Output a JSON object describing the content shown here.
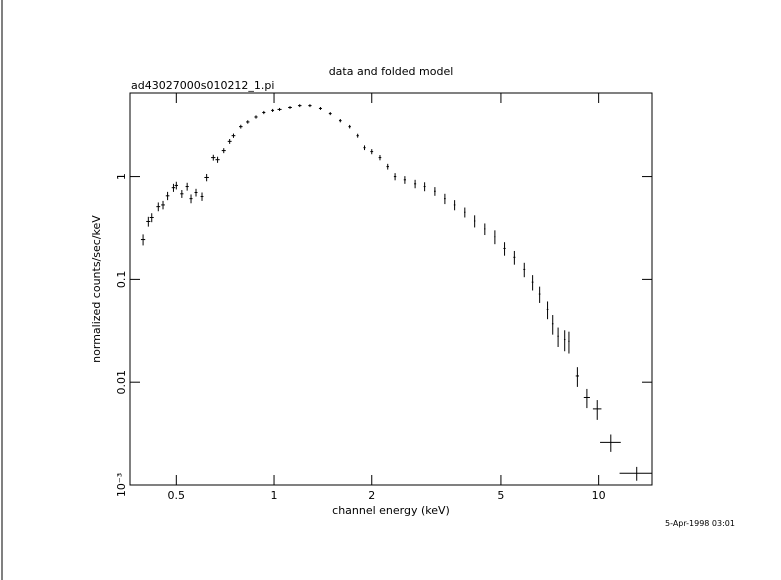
{
  "chart_data": {
    "type": "scatter",
    "title": "data and folded model",
    "subtitle": "ad43027000s010212_1.pi",
    "xlabel": "channel energy (keV)",
    "ylabel": "normalized counts/sec/keV",
    "timestamp": "5-Apr-1998 03:01",
    "xscale": "log",
    "yscale": "log",
    "xlim": [
      0.36,
      14.6
    ],
    "ylim": [
      0.001,
      6.5
    ],
    "xticks": [
      0.5,
      1,
      2,
      5,
      10
    ],
    "yticks": [
      {
        "value": 0.001,
        "label": "10⁻³"
      },
      0.01,
      0.1,
      1
    ],
    "series": [
      {
        "color": "#000000",
        "x": [
          0.395,
          0.41,
          0.42,
          0.44,
          0.455,
          0.47,
          0.49,
          0.5,
          0.52,
          0.54,
          0.555,
          0.575,
          0.6,
          0.62,
          0.65,
          0.67,
          0.7,
          0.73,
          0.75,
          0.79,
          0.83,
          0.88,
          0.93,
          0.99,
          1.04,
          1.12,
          1.2,
          1.29,
          1.39,
          1.49,
          1.6,
          1.71,
          1.81,
          1.9,
          2.0,
          2.12,
          2.24,
          2.36,
          2.53,
          2.72,
          2.91,
          3.13,
          3.36,
          3.6,
          3.87,
          4.15,
          4.46,
          4.79,
          5.13,
          5.5,
          5.9,
          6.26,
          6.58,
          6.96,
          7.22,
          7.5,
          7.86,
          8.1,
          8.6,
          9.2,
          9.9,
          10.9,
          13.1
        ],
        "values": [
          0.244,
          0.366,
          0.4,
          0.51,
          0.53,
          0.65,
          0.78,
          0.82,
          0.68,
          0.8,
          0.61,
          0.7,
          0.64,
          0.98,
          1.53,
          1.46,
          1.79,
          2.2,
          2.5,
          3.06,
          3.4,
          3.8,
          4.2,
          4.4,
          4.5,
          4.7,
          4.9,
          4.9,
          4.6,
          4.1,
          3.5,
          3.06,
          2.5,
          1.91,
          1.75,
          1.53,
          1.25,
          1.0,
          0.93,
          0.85,
          0.8,
          0.72,
          0.61,
          0.53,
          0.45,
          0.37,
          0.31,
          0.26,
          0.2,
          0.164,
          0.125,
          0.094,
          0.072,
          0.051,
          0.037,
          0.028,
          0.026,
          0.025,
          0.0115,
          0.0071,
          0.0055,
          0.0026,
          0.0013
        ],
        "xerr": [
          0.006,
          0.006,
          0.006,
          0.006,
          0.006,
          0.006,
          0.006,
          0.006,
          0.006,
          0.006,
          0.006,
          0.006,
          0.006,
          0.01,
          0.01,
          0.01,
          0.01,
          0.01,
          0.01,
          0.01,
          0.01,
          0.01,
          0.01,
          0.01,
          0.015,
          0.015,
          0.015,
          0.015,
          0.015,
          0.015,
          0.015,
          0.015,
          0.015,
          0.015,
          0.02,
          0.02,
          0.02,
          0.02,
          0.02,
          0.02,
          0.02,
          0.02,
          0.02,
          0.02,
          0.02,
          0.02,
          0.02,
          0.02,
          0.04,
          0.04,
          0.04,
          0.04,
          0.04,
          0.04,
          0.04,
          0.04,
          0.04,
          0.04,
          0.1,
          0.2,
          0.3,
          0.8,
          1.5
        ],
        "yerr": [
          0.03,
          0.04,
          0.04,
          0.05,
          0.05,
          0.06,
          0.07,
          0.07,
          0.06,
          0.07,
          0.06,
          0.06,
          0.06,
          0.08,
          0.1,
          0.1,
          0.1,
          0.12,
          0.12,
          0.13,
          0.13,
          0.14,
          0.15,
          0.15,
          0.15,
          0.15,
          0.16,
          0.16,
          0.15,
          0.14,
          0.13,
          0.12,
          0.11,
          0.1,
          0.1,
          0.09,
          0.08,
          0.08,
          0.08,
          0.08,
          0.08,
          0.07,
          0.07,
          0.06,
          0.05,
          0.05,
          0.04,
          0.04,
          0.03,
          0.025,
          0.02,
          0.016,
          0.013,
          0.01,
          0.008,
          0.006,
          0.006,
          0.006,
          0.0025,
          0.0015,
          0.0012,
          0.0005,
          0.0002
        ]
      }
    ]
  }
}
